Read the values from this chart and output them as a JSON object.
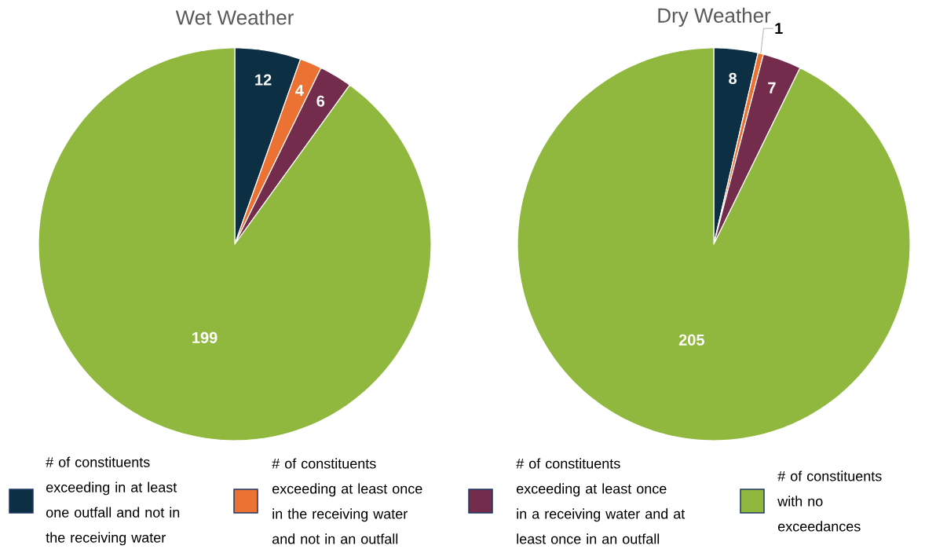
{
  "chart_data": [
    {
      "type": "pie",
      "title": "Wet Weather",
      "categories": [
        "# of constituents exceeding in at least one outfall and not in the receiving water",
        "# of constituents exceeding at least once in the receiving water and not in an outfall",
        "# of constituents exceeding at least once in a receiving water and at least once in an outfall",
        "# of constituents with no exceedances"
      ],
      "values": [
        12,
        4,
        6,
        199
      ],
      "colors": [
        "#0c2f44",
        "#ec7234",
        "#742c4c",
        "#90b83e"
      ],
      "data_labels": true,
      "legend": "bottom"
    },
    {
      "type": "pie",
      "title": "Dry Weather",
      "categories": [
        null,
        null,
        null,
        null
      ],
      "values": [
        8,
        1,
        7,
        205
      ],
      "colors": [
        "#0c2f44",
        "#ec7234",
        "#742c4c",
        "#90b83e"
      ],
      "data_labels": true
    }
  ]
}
